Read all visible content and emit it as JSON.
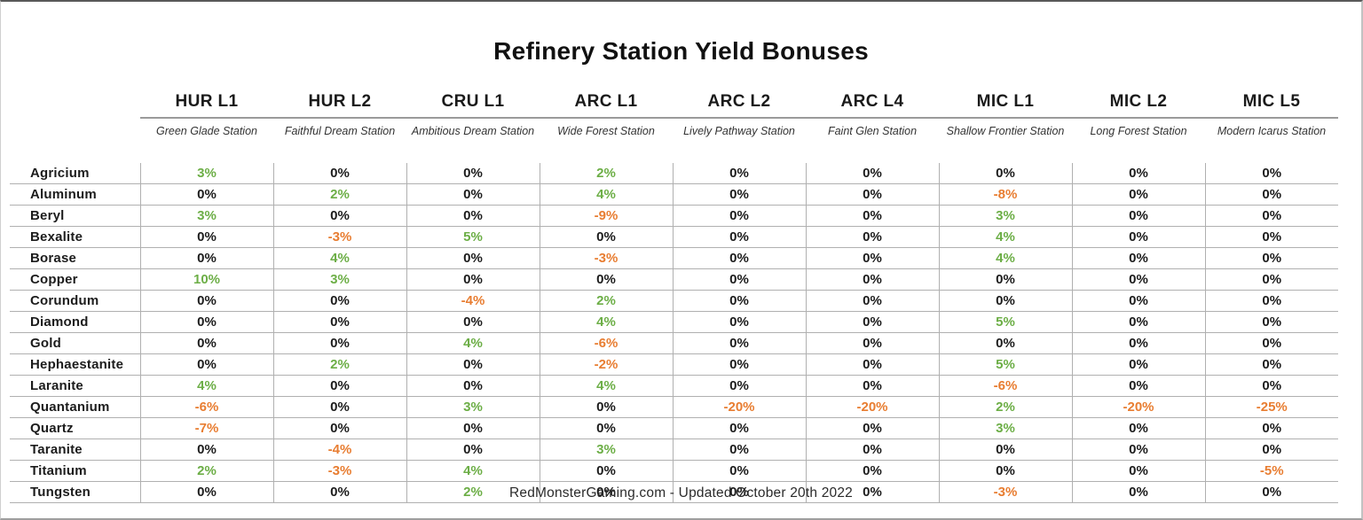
{
  "page": {
    "title": "Refinery Station Yield Bonuses",
    "footer": "RedMonsterGaming.com - Updated October 20th 2022"
  },
  "colors": {
    "positive_green": "#6cae46",
    "negative_orange": "#e87d31",
    "zero_black": "#1c1c1c",
    "gridline": "#b0b0b0",
    "header_rule": "#9a9a9a"
  },
  "chart_data": {
    "type": "table",
    "title": "Refinery Station Yield Bonuses",
    "value_unit": "%",
    "value_color_rule": "positive=green, negative=orange, zero=black",
    "columns": [
      {
        "code": "HUR L1",
        "name": "Green Glade Station"
      },
      {
        "code": "HUR L2",
        "name": "Faithful Dream Station"
      },
      {
        "code": "CRU L1",
        "name": "Ambitious Dream Station"
      },
      {
        "code": "ARC L1",
        "name": "Wide Forest Station"
      },
      {
        "code": "ARC L2",
        "name": "Lively Pathway Station"
      },
      {
        "code": "ARC L4",
        "name": "Faint Glen Station"
      },
      {
        "code": "MIC L1",
        "name": "Shallow Frontier Station"
      },
      {
        "code": "MIC L2",
        "name": "Long Forest Station"
      },
      {
        "code": "MIC L5",
        "name": "Modern Icarus Station"
      }
    ],
    "rows": [
      {
        "material": "Agricium",
        "values": [
          3,
          0,
          0,
          2,
          0,
          0,
          0,
          0,
          0
        ]
      },
      {
        "material": "Aluminum",
        "values": [
          0,
          2,
          0,
          4,
          0,
          0,
          -8,
          0,
          0
        ]
      },
      {
        "material": "Beryl",
        "values": [
          3,
          0,
          0,
          -9,
          0,
          0,
          3,
          0,
          0
        ]
      },
      {
        "material": "Bexalite",
        "values": [
          0,
          -3,
          5,
          0,
          0,
          0,
          4,
          0,
          0
        ]
      },
      {
        "material": "Borase",
        "values": [
          0,
          4,
          0,
          -3,
          0,
          0,
          4,
          0,
          0
        ]
      },
      {
        "material": "Copper",
        "values": [
          10,
          3,
          0,
          0,
          0,
          0,
          0,
          0,
          0
        ]
      },
      {
        "material": "Corundum",
        "values": [
          0,
          0,
          -4,
          2,
          0,
          0,
          0,
          0,
          0
        ]
      },
      {
        "material": "Diamond",
        "values": [
          0,
          0,
          0,
          4,
          0,
          0,
          5,
          0,
          0
        ]
      },
      {
        "material": "Gold",
        "values": [
          0,
          0,
          4,
          -6,
          0,
          0,
          0,
          0,
          0
        ]
      },
      {
        "material": "Hephaestanite",
        "values": [
          0,
          2,
          0,
          -2,
          0,
          0,
          5,
          0,
          0
        ]
      },
      {
        "material": "Laranite",
        "values": [
          4,
          0,
          0,
          4,
          0,
          0,
          -6,
          0,
          0
        ]
      },
      {
        "material": "Quantanium",
        "values": [
          -6,
          0,
          3,
          0,
          -20,
          -20,
          2,
          -20,
          -25
        ]
      },
      {
        "material": "Quartz",
        "values": [
          -7,
          0,
          0,
          0,
          0,
          0,
          3,
          0,
          0
        ]
      },
      {
        "material": "Taranite",
        "values": [
          0,
          -4,
          0,
          3,
          0,
          0,
          0,
          0,
          0
        ]
      },
      {
        "material": "Titanium",
        "values": [
          2,
          -3,
          4,
          0,
          0,
          0,
          0,
          0,
          -5
        ]
      },
      {
        "material": "Tungsten",
        "values": [
          0,
          0,
          2,
          0,
          0,
          0,
          -3,
          0,
          0
        ]
      }
    ]
  }
}
